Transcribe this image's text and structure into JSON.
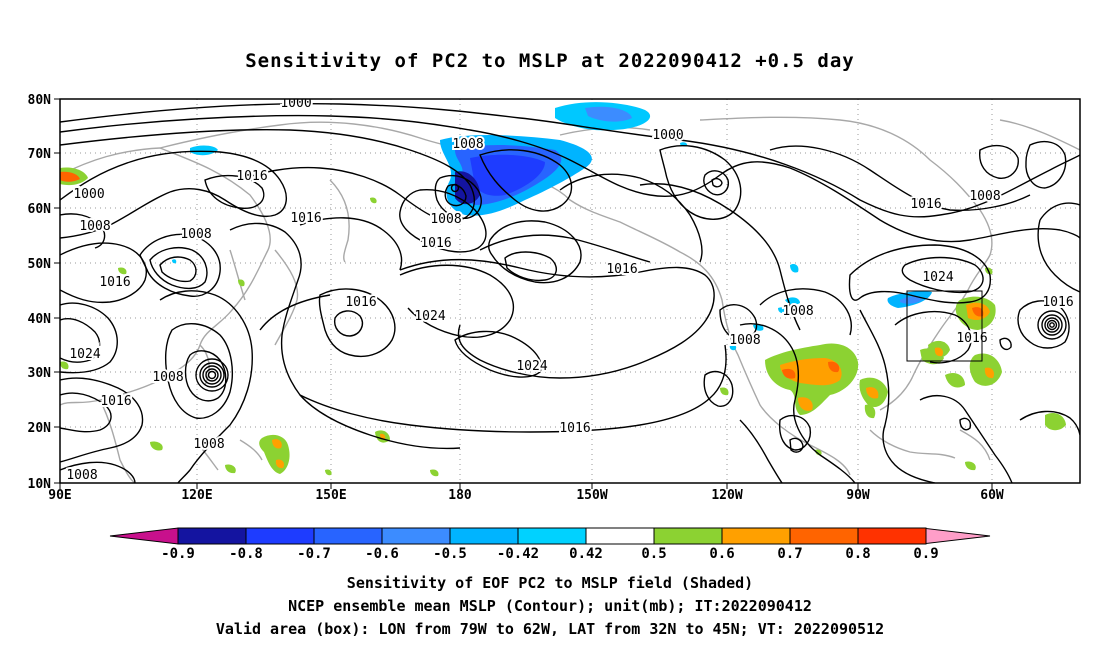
{
  "title": "Sensitivity of PC2 to MSLP at 2022090412 +0.5 day",
  "axes": {
    "lon_ticks": [
      "90E",
      "120E",
      "150E",
      "180",
      "150W",
      "120W",
      "90W",
      "60W"
    ],
    "lat_ticks": [
      "80N",
      "70N",
      "60N",
      "50N",
      "40N",
      "30N",
      "20N",
      "10N"
    ]
  },
  "contour_labels": [
    "1000",
    "1000",
    "1008",
    "1000",
    "1016",
    "1008",
    "1008",
    "1016",
    "1008",
    "1016",
    "1008",
    "1016",
    "1016",
    "1016",
    "1024",
    "1008",
    "1016",
    "1008",
    "1024",
    "1024",
    "1008",
    "1024",
    "1016",
    "1016",
    "1016",
    "1008",
    "1008"
  ],
  "colorbar": {
    "labels": [
      "-0.9",
      "-0.8",
      "-0.7",
      "-0.6",
      "-0.5",
      "-0.42",
      "0.42",
      "0.5",
      "0.6",
      "0.7",
      "0.8",
      "0.9"
    ],
    "colors": [
      "#1414a0",
      "#1e3cff",
      "#2864ff",
      "#3c8cff",
      "#00b4ff",
      "#00d2ff",
      "#ffffff",
      "#8cd232",
      "#ffa000",
      "#ff6400",
      "#ff3200",
      "#ff0000"
    ],
    "low_end_color": "#c8108c",
    "high_end_color": "#ff9ec8"
  },
  "footer": {
    "line1": "Sensitivity of EOF PC2 to MSLP field (Shaded)",
    "line2": "NCEP ensemble mean MSLP (Contour); unit(mb); IT:2022090412",
    "line3": "Valid area (box): LON from 79W to 62W, LAT from 32N to 45N; VT: 2022090512"
  }
}
